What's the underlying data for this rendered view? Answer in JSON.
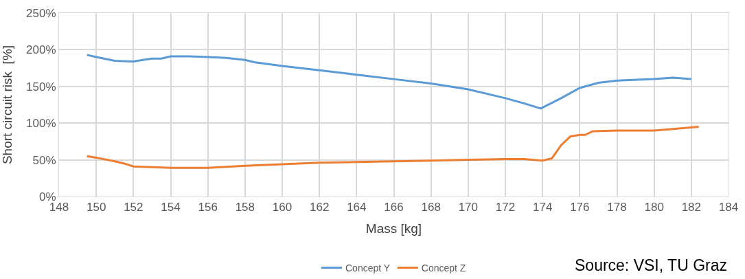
{
  "chart_data": {
    "type": "line",
    "xlabel": "Mass [kg]",
    "ylabel": "Short circuit risk  [%]",
    "annotations": [
      "Source: VSI, TU Graz"
    ],
    "xlim": [
      148,
      184
    ],
    "xticks": [
      148,
      150,
      152,
      154,
      156,
      158,
      160,
      162,
      164,
      166,
      168,
      170,
      172,
      174,
      176,
      178,
      180,
      182,
      184
    ],
    "ylim": [
      0,
      250
    ],
    "yticks": [
      {
        "value": 0,
        "label": "0%"
      },
      {
        "value": 50,
        "label": "50%"
      },
      {
        "value": 100,
        "label": "100%"
      },
      {
        "value": 150,
        "label": "150%"
      },
      {
        "value": 200,
        "label": "200%"
      },
      {
        "value": 250,
        "label": "250%"
      }
    ],
    "grid": true,
    "legend": "bottom",
    "marker": "none",
    "line_style": "solid",
    "series": [
      {
        "name": "Concept Y",
        "color": "#5b9bd5",
        "x": [
          149.5,
          150,
          151,
          152,
          152.5,
          153,
          153.5,
          154,
          155,
          156,
          157,
          158,
          158.5,
          160,
          162,
          164,
          166,
          168,
          170,
          172,
          173,
          173.9,
          175,
          176,
          177,
          178,
          180,
          181,
          182
        ],
        "values": [
          193,
          190,
          185,
          184,
          186,
          188,
          188,
          191,
          191,
          190,
          189,
          186,
          183,
          178,
          172,
          166,
          160,
          154,
          146,
          134,
          127,
          120,
          134,
          148,
          155,
          158,
          160,
          162,
          160
        ]
      },
      {
        "name": "Concept Z",
        "color": "#ed7d31",
        "x": [
          149.5,
          150,
          151,
          151.5,
          152,
          153,
          154,
          156,
          158,
          160,
          162,
          164,
          166,
          168,
          170,
          172,
          173,
          174,
          174.5,
          175,
          175.5,
          176,
          176.3,
          176.7,
          178,
          180,
          181,
          182.4
        ],
        "values": [
          55,
          53,
          48,
          45,
          41,
          40,
          39,
          39,
          42,
          44,
          46,
          47,
          48,
          49,
          50,
          51,
          51,
          49,
          52,
          70,
          82,
          84,
          84,
          89,
          90,
          90,
          92,
          95
        ]
      }
    ]
  }
}
